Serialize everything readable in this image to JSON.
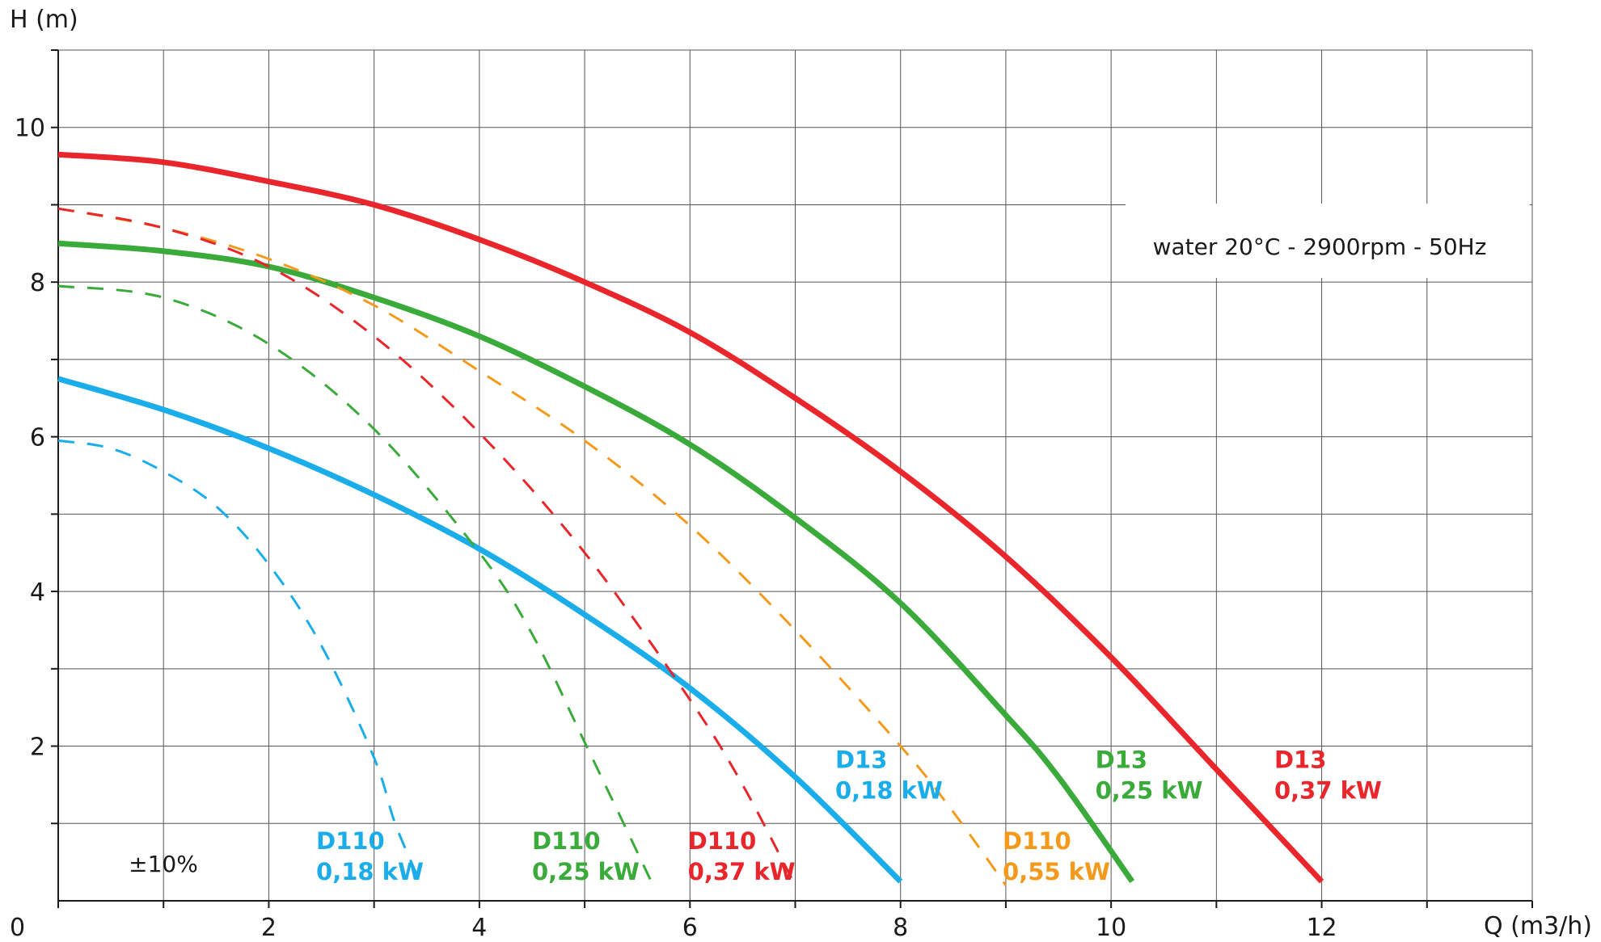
{
  "chart_data": {
    "type": "line",
    "title": "",
    "xlabel": "Q (m3/h)",
    "ylabel": "H (m)",
    "xlim": [
      0,
      14
    ],
    "ylim": [
      0,
      11
    ],
    "x_ticks": [
      0,
      2,
      4,
      6,
      8,
      10,
      12
    ],
    "y_ticks": [
      2,
      4,
      6,
      8,
      10
    ],
    "grid": true,
    "annotations": {
      "conditions": "water 20°C - 2900rpm - 50Hz",
      "tolerance": "±10%"
    },
    "series": [
      {
        "name": "D13 0,37 kW",
        "label_line1": "D13",
        "label_line2": "0,37 kW",
        "color": "#e8262b",
        "style": "solid",
        "x": [
          0,
          1,
          2,
          3,
          4,
          5,
          6,
          7,
          8,
          9,
          10,
          11,
          12
        ],
        "y": [
          9.65,
          9.55,
          9.3,
          9.0,
          8.55,
          8.0,
          7.35,
          6.5,
          5.55,
          4.45,
          3.15,
          1.7,
          0.25
        ]
      },
      {
        "name": "D13 0,25 kW",
        "label_line1": "D13",
        "label_line2": "0,25 kW",
        "color": "#3aaa3a",
        "style": "solid",
        "x": [
          0,
          1,
          2,
          3,
          4,
          5,
          6,
          7,
          8,
          9,
          9.5,
          10.2
        ],
        "y": [
          8.5,
          8.4,
          8.2,
          7.8,
          7.3,
          6.65,
          5.9,
          4.95,
          3.85,
          2.4,
          1.6,
          0.25
        ]
      },
      {
        "name": "D13 0,18 kW",
        "label_line1": "D13",
        "label_line2": "0,18 kW",
        "color": "#1badea",
        "style": "solid",
        "x": [
          0,
          1,
          2,
          3,
          4,
          5,
          6,
          7,
          8
        ],
        "y": [
          6.75,
          6.35,
          5.85,
          5.25,
          4.55,
          3.7,
          2.75,
          1.6,
          0.25
        ]
      },
      {
        "name": "D110 0,55 kW",
        "label_line1": "D110",
        "label_line2": "0,55 kW",
        "color": "#f39a1c",
        "style": "dashed",
        "x": [
          0,
          1,
          2,
          3,
          4,
          5,
          6,
          7,
          8,
          8.5,
          9
        ],
        "y": [
          8.95,
          8.7,
          8.3,
          7.7,
          6.85,
          5.95,
          4.85,
          3.5,
          2.0,
          1.15,
          0.2
        ]
      },
      {
        "name": "D110 0,37 kW",
        "label_line1": "D110",
        "label_line2": "0,37 kW",
        "color": "#e8262b",
        "style": "dashed",
        "x": [
          0,
          1,
          2,
          3,
          4,
          5,
          6,
          6.5,
          7
        ],
        "y": [
          8.95,
          8.7,
          8.2,
          7.3,
          6.05,
          4.5,
          2.6,
          1.5,
          0.2
        ]
      },
      {
        "name": "D110 0,25 kW",
        "label_line1": "D110",
        "label_line2": "0,25 kW",
        "color": "#3aaa3a",
        "style": "dashed",
        "x": [
          0,
          1,
          2,
          3,
          4,
          4.5,
          5,
          5.3,
          5.65
        ],
        "y": [
          7.95,
          7.8,
          7.2,
          6.1,
          4.5,
          3.45,
          2.05,
          1.2,
          0.2
        ]
      },
      {
        "name": "D110 0,18 kW",
        "label_line1": "D110",
        "label_line2": "0,18 kW",
        "color": "#1badea",
        "style": "dashed",
        "x": [
          0,
          0.5,
          1,
          1.5,
          2,
          2.5,
          3,
          3.2,
          3.45
        ],
        "y": [
          5.95,
          5.85,
          5.55,
          5.1,
          4.35,
          3.3,
          1.85,
          1.0,
          0.2
        ]
      }
    ]
  }
}
